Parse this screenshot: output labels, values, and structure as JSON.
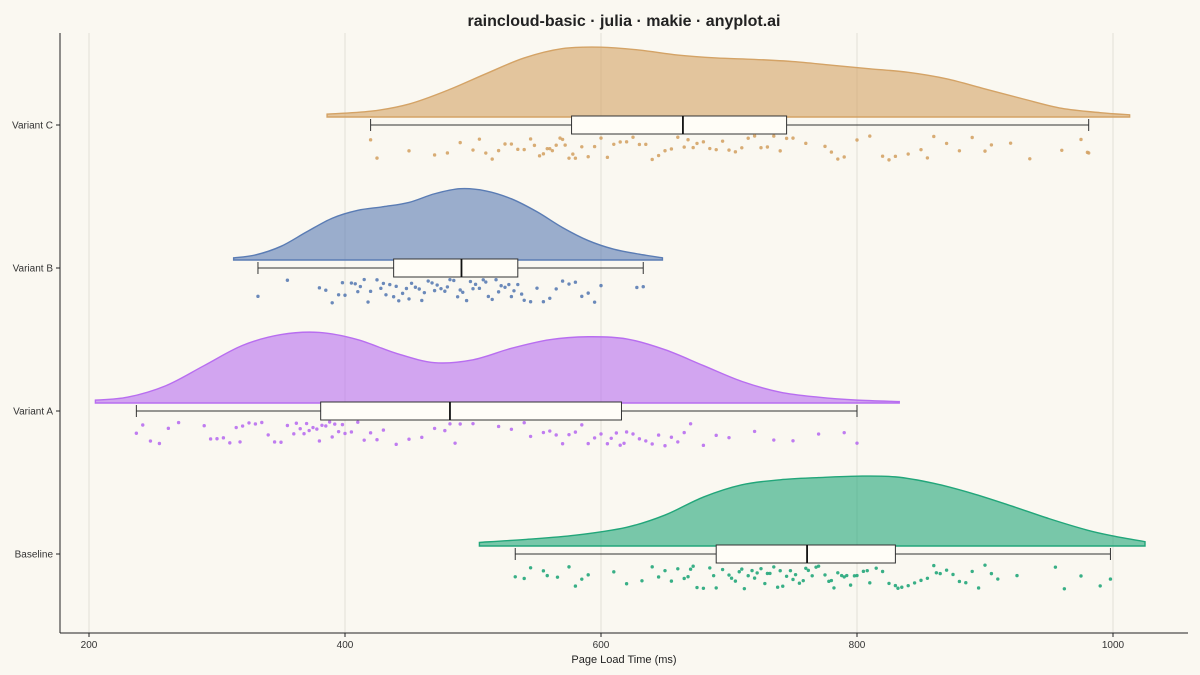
{
  "chart_data": {
    "type": "raincloud",
    "title": "raincloud-basic · julia · makie · anyplot.ai",
    "xlabel": "Page Load Time (ms)",
    "ylabel": "",
    "xlim": [
      170,
      1030
    ],
    "xticks": [
      200,
      400,
      600,
      800,
      1000
    ],
    "grid": true,
    "categories": [
      "Baseline",
      "Variant A",
      "Variant B",
      "Variant C"
    ],
    "series": [
      {
        "name": "Baseline",
        "color": "#22A67A",
        "min": 533,
        "q1": 690,
        "median": 761,
        "q3": 830,
        "max": 998,
        "density_range": [
          505,
          1025
        ],
        "density": [
          [
            505,
            0.05
          ],
          [
            540,
            0.09
          ],
          [
            580,
            0.15
          ],
          [
            620,
            0.26
          ],
          [
            650,
            0.43
          ],
          [
            680,
            0.68
          ],
          [
            710,
            0.85
          ],
          [
            740,
            0.92
          ],
          [
            770,
            0.95
          ],
          [
            800,
            0.97
          ],
          [
            830,
            0.96
          ],
          [
            860,
            0.87
          ],
          [
            890,
            0.73
          ],
          [
            920,
            0.56
          ],
          [
            950,
            0.38
          ],
          [
            980,
            0.22
          ],
          [
            1000,
            0.14
          ],
          [
            1025,
            0.06
          ]
        ],
        "points": [
          533,
          540,
          545,
          555,
          558,
          566,
          575,
          580,
          585,
          590,
          610,
          620,
          632,
          640,
          645,
          650,
          655,
          660,
          665,
          668,
          670,
          672,
          675,
          680,
          685,
          688,
          690,
          695,
          700,
          702,
          705,
          708,
          710,
          712,
          715,
          718,
          720,
          722,
          725,
          728,
          730,
          732,
          735,
          738,
          740,
          742,
          745,
          748,
          750,
          752,
          755,
          758,
          760,
          762,
          765,
          768,
          770,
          775,
          778,
          780,
          782,
          785,
          788,
          790,
          792,
          795,
          798,
          800,
          805,
          808,
          810,
          815,
          820,
          825,
          830,
          832,
          835,
          840,
          845,
          850,
          855,
          860,
          862,
          865,
          870,
          875,
          880,
          885,
          890,
          895,
          900,
          905,
          910,
          925,
          955,
          962,
          975,
          990,
          998
        ]
      },
      {
        "name": "Variant A",
        "color": "#B86EF0",
        "min": 237,
        "q1": 381,
        "median": 482,
        "q3": 616,
        "max": 800,
        "density_range": [
          205,
          833
        ],
        "density": [
          [
            205,
            0.04
          ],
          [
            230,
            0.08
          ],
          [
            260,
            0.24
          ],
          [
            290,
            0.52
          ],
          [
            320,
            0.8
          ],
          [
            350,
            0.95
          ],
          [
            380,
            0.98
          ],
          [
            410,
            0.88
          ],
          [
            440,
            0.69
          ],
          [
            470,
            0.56
          ],
          [
            500,
            0.6
          ],
          [
            530,
            0.76
          ],
          [
            560,
            0.88
          ],
          [
            590,
            0.92
          ],
          [
            620,
            0.89
          ],
          [
            650,
            0.74
          ],
          [
            680,
            0.52
          ],
          [
            710,
            0.3
          ],
          [
            740,
            0.15
          ],
          [
            770,
            0.08
          ],
          [
            800,
            0.04
          ],
          [
            833,
            0.02
          ]
        ],
        "points": [
          237,
          242,
          248,
          255,
          262,
          270,
          290,
          295,
          300,
          305,
          310,
          315,
          318,
          320,
          325,
          330,
          335,
          340,
          345,
          350,
          355,
          360,
          362,
          365,
          368,
          370,
          372,
          375,
          378,
          380,
          382,
          385,
          388,
          390,
          392,
          395,
          398,
          400,
          405,
          410,
          415,
          420,
          425,
          430,
          440,
          450,
          460,
          470,
          478,
          482,
          486,
          490,
          500,
          520,
          530,
          540,
          545,
          555,
          560,
          565,
          570,
          575,
          580,
          585,
          590,
          595,
          600,
          605,
          608,
          612,
          615,
          618,
          620,
          625,
          630,
          635,
          640,
          645,
          650,
          655,
          660,
          665,
          670,
          680,
          690,
          700,
          720,
          735,
          750,
          770,
          790,
          800
        ]
      },
      {
        "name": "Variant B",
        "color": "#5A7CB4",
        "min": 332,
        "q1": 438,
        "median": 491,
        "q3": 535,
        "max": 633,
        "density_range": [
          313,
          648
        ],
        "density": [
          [
            313,
            0.03
          ],
          [
            330,
            0.07
          ],
          [
            350,
            0.19
          ],
          [
            370,
            0.39
          ],
          [
            390,
            0.58
          ],
          [
            410,
            0.69
          ],
          [
            430,
            0.74
          ],
          [
            450,
            0.8
          ],
          [
            470,
            0.92
          ],
          [
            490,
            0.99
          ],
          [
            510,
            0.96
          ],
          [
            530,
            0.85
          ],
          [
            550,
            0.67
          ],
          [
            570,
            0.45
          ],
          [
            590,
            0.27
          ],
          [
            610,
            0.15
          ],
          [
            630,
            0.08
          ],
          [
            648,
            0.03
          ]
        ],
        "points": [
          332,
          355,
          380,
          385,
          390,
          395,
          398,
          400,
          405,
          408,
          410,
          412,
          415,
          418,
          420,
          425,
          428,
          430,
          432,
          435,
          438,
          440,
          442,
          445,
          448,
          450,
          452,
          455,
          458,
          460,
          462,
          465,
          468,
          470,
          472,
          475,
          478,
          480,
          482,
          485,
          488,
          490,
          492,
          495,
          498,
          500,
          502,
          505,
          508,
          510,
          512,
          515,
          518,
          520,
          522,
          525,
          528,
          530,
          532,
          535,
          538,
          540,
          545,
          550,
          555,
          560,
          565,
          570,
          575,
          580,
          585,
          590,
          595,
          600,
          628,
          633
        ]
      },
      {
        "name": "Variant C",
        "color": "#D4A366",
        "min": 420,
        "q1": 577,
        "median": 664,
        "q3": 745,
        "max": 981,
        "density_range": [
          386,
          1013
        ],
        "density": [
          [
            386,
            0.04
          ],
          [
            420,
            0.08
          ],
          [
            450,
            0.18
          ],
          [
            480,
            0.37
          ],
          [
            510,
            0.6
          ],
          [
            540,
            0.82
          ],
          [
            570,
            0.95
          ],
          [
            600,
            0.97
          ],
          [
            630,
            0.93
          ],
          [
            660,
            0.86
          ],
          [
            690,
            0.82
          ],
          [
            720,
            0.8
          ],
          [
            750,
            0.77
          ],
          [
            780,
            0.72
          ],
          [
            810,
            0.67
          ],
          [
            840,
            0.62
          ],
          [
            870,
            0.53
          ],
          [
            900,
            0.39
          ],
          [
            930,
            0.25
          ],
          [
            960,
            0.12
          ],
          [
            990,
            0.06
          ],
          [
            1013,
            0.03
          ]
        ],
        "points": [
          420,
          425,
          450,
          470,
          480,
          490,
          500,
          505,
          510,
          515,
          520,
          525,
          530,
          535,
          540,
          545,
          548,
          552,
          555,
          558,
          560,
          562,
          565,
          568,
          570,
          572,
          575,
          578,
          580,
          585,
          590,
          595,
          600,
          605,
          610,
          615,
          620,
          625,
          630,
          635,
          640,
          645,
          650,
          655,
          660,
          665,
          668,
          672,
          675,
          680,
          685,
          690,
          695,
          700,
          705,
          710,
          715,
          720,
          725,
          730,
          735,
          740,
          745,
          750,
          760,
          775,
          780,
          785,
          790,
          800,
          810,
          820,
          825,
          830,
          840,
          850,
          855,
          860,
          870,
          880,
          890,
          900,
          905,
          920,
          935,
          960,
          975,
          980,
          981
        ]
      }
    ]
  }
}
